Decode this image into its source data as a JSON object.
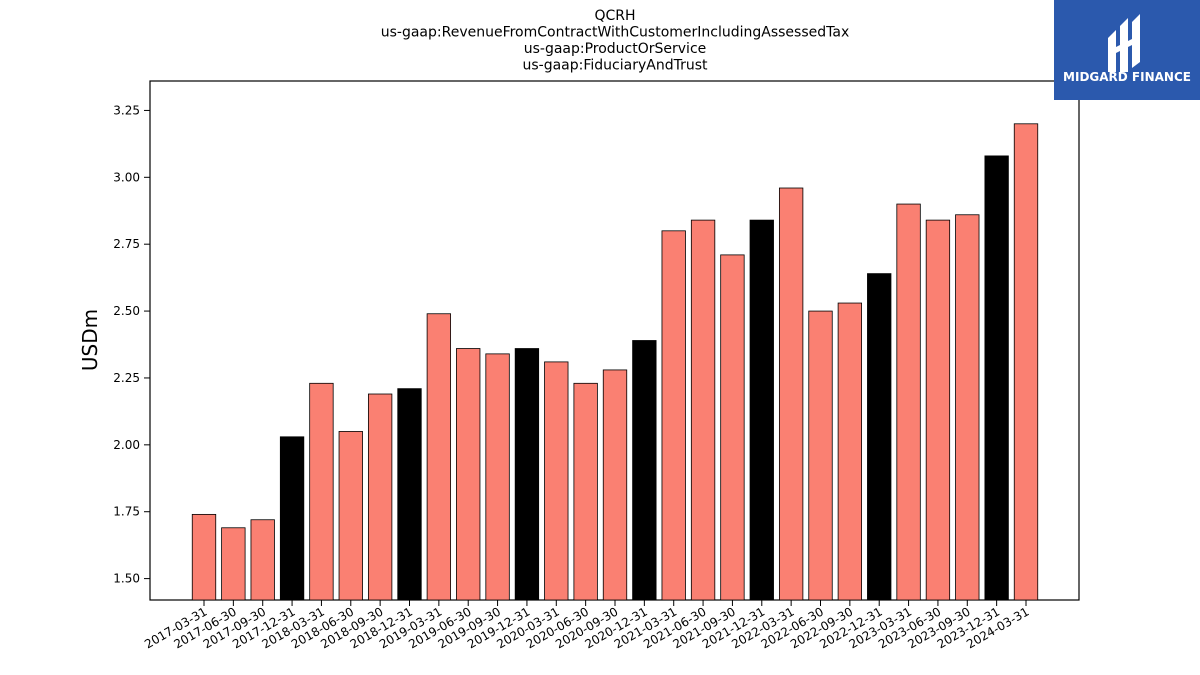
{
  "chart_data": {
    "type": "bar",
    "title_lines": [
      "QCRH",
      "us-gaap:RevenueFromContractWithCustomerIncludingAssessedTax",
      "us-gaap:ProductOrService",
      "us-gaap:FiduciaryAndTrust"
    ],
    "xlabel": "",
    "ylabel": "USDm",
    "ylim": [
      1.42,
      3.36
    ],
    "yticks": [
      "1.50",
      "1.75",
      "2.00",
      "2.25",
      "2.50",
      "2.75",
      "3.00",
      "3.25"
    ],
    "grid": false,
    "categories": [
      "2017-03-31",
      "2017-06-30",
      "2017-09-30",
      "2017-12-31",
      "2018-03-31",
      "2018-06-30",
      "2018-09-30",
      "2018-12-31",
      "2019-03-31",
      "2019-06-30",
      "2019-09-30",
      "2019-12-31",
      "2020-03-31",
      "2020-06-30",
      "2020-09-30",
      "2020-12-31",
      "2021-03-31",
      "2021-06-30",
      "2021-09-30",
      "2021-12-31",
      "2022-03-31",
      "2022-06-30",
      "2022-09-30",
      "2022-12-31",
      "2023-03-31",
      "2023-06-30",
      "2023-09-30",
      "2023-12-31",
      "2024-03-31"
    ],
    "values": [
      1.74,
      1.69,
      1.72,
      2.03,
      2.23,
      2.05,
      2.19,
      2.21,
      2.49,
      2.36,
      2.34,
      2.36,
      2.31,
      2.23,
      2.28,
      2.39,
      2.8,
      2.84,
      2.71,
      2.84,
      2.96,
      2.5,
      2.53,
      2.64,
      2.9,
      2.84,
      2.86,
      3.08,
      3.2
    ],
    "bar_colors": [
      "#fa8072",
      "#fa8072",
      "#fa8072",
      "#000000",
      "#fa8072",
      "#fa8072",
      "#fa8072",
      "#000000",
      "#fa8072",
      "#fa8072",
      "#fa8072",
      "#000000",
      "#fa8072",
      "#fa8072",
      "#fa8072",
      "#000000",
      "#fa8072",
      "#fa8072",
      "#fa8072",
      "#000000",
      "#fa8072",
      "#fa8072",
      "#fa8072",
      "#000000",
      "#fa8072",
      "#fa8072",
      "#fa8072",
      "#000000",
      "#fa8072"
    ]
  },
  "logo": {
    "text": "MIDGARD FINANCE",
    "background": "#2b59ad",
    "icon": "midgard-logo-icon"
  }
}
